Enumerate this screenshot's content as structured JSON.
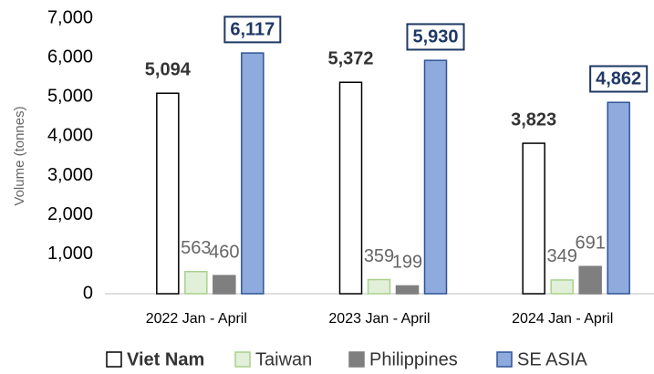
{
  "chart_data": {
    "type": "bar",
    "y_label": "Volume (tonnes)",
    "categories": [
      "2022 Jan - April",
      "2023 Jan - April",
      "2024 Jan - April"
    ],
    "series": [
      {
        "name": "Viet Nam",
        "color": "#ffffff",
        "edgecolor": "#000000",
        "values": [
          5094,
          5372,
          3823
        ],
        "value_labels": [
          "5,094",
          "5,372",
          "3,823"
        ]
      },
      {
        "name": "Taiwan",
        "color": "#e2efd9",
        "edgecolor": "#a9d18e",
        "values": [
          563,
          359,
          349
        ]
      },
      {
        "name": "Philippines",
        "color": "#7f7f7f",
        "edgecolor": "#7f7f7f",
        "values": [
          460,
          199,
          691
        ]
      },
      {
        "name": "SE ASIA",
        "color": "#8faadc",
        "edgecolor": "#2f5597",
        "values": [
          6117,
          5930,
          4862
        ],
        "value_labels": [
          "6,117",
          "5,930",
          "4,862"
        ]
      }
    ],
    "ylim": [
      0,
      7000
    ],
    "yticks": [
      0,
      {
        "value": 1000,
        "label": "1,000"
      },
      {
        "value": 2000,
        "label": "2,000"
      },
      {
        "value": 3000,
        "label": "3,000"
      },
      {
        "value": 4000,
        "label": "4,000"
      },
      {
        "value": 5000,
        "label": "5,000"
      },
      {
        "value": 6000,
        "label": "6,000"
      },
      {
        "value": 7000,
        "label": "7,000"
      }
    ],
    "grid": false,
    "legend": "bottom"
  }
}
